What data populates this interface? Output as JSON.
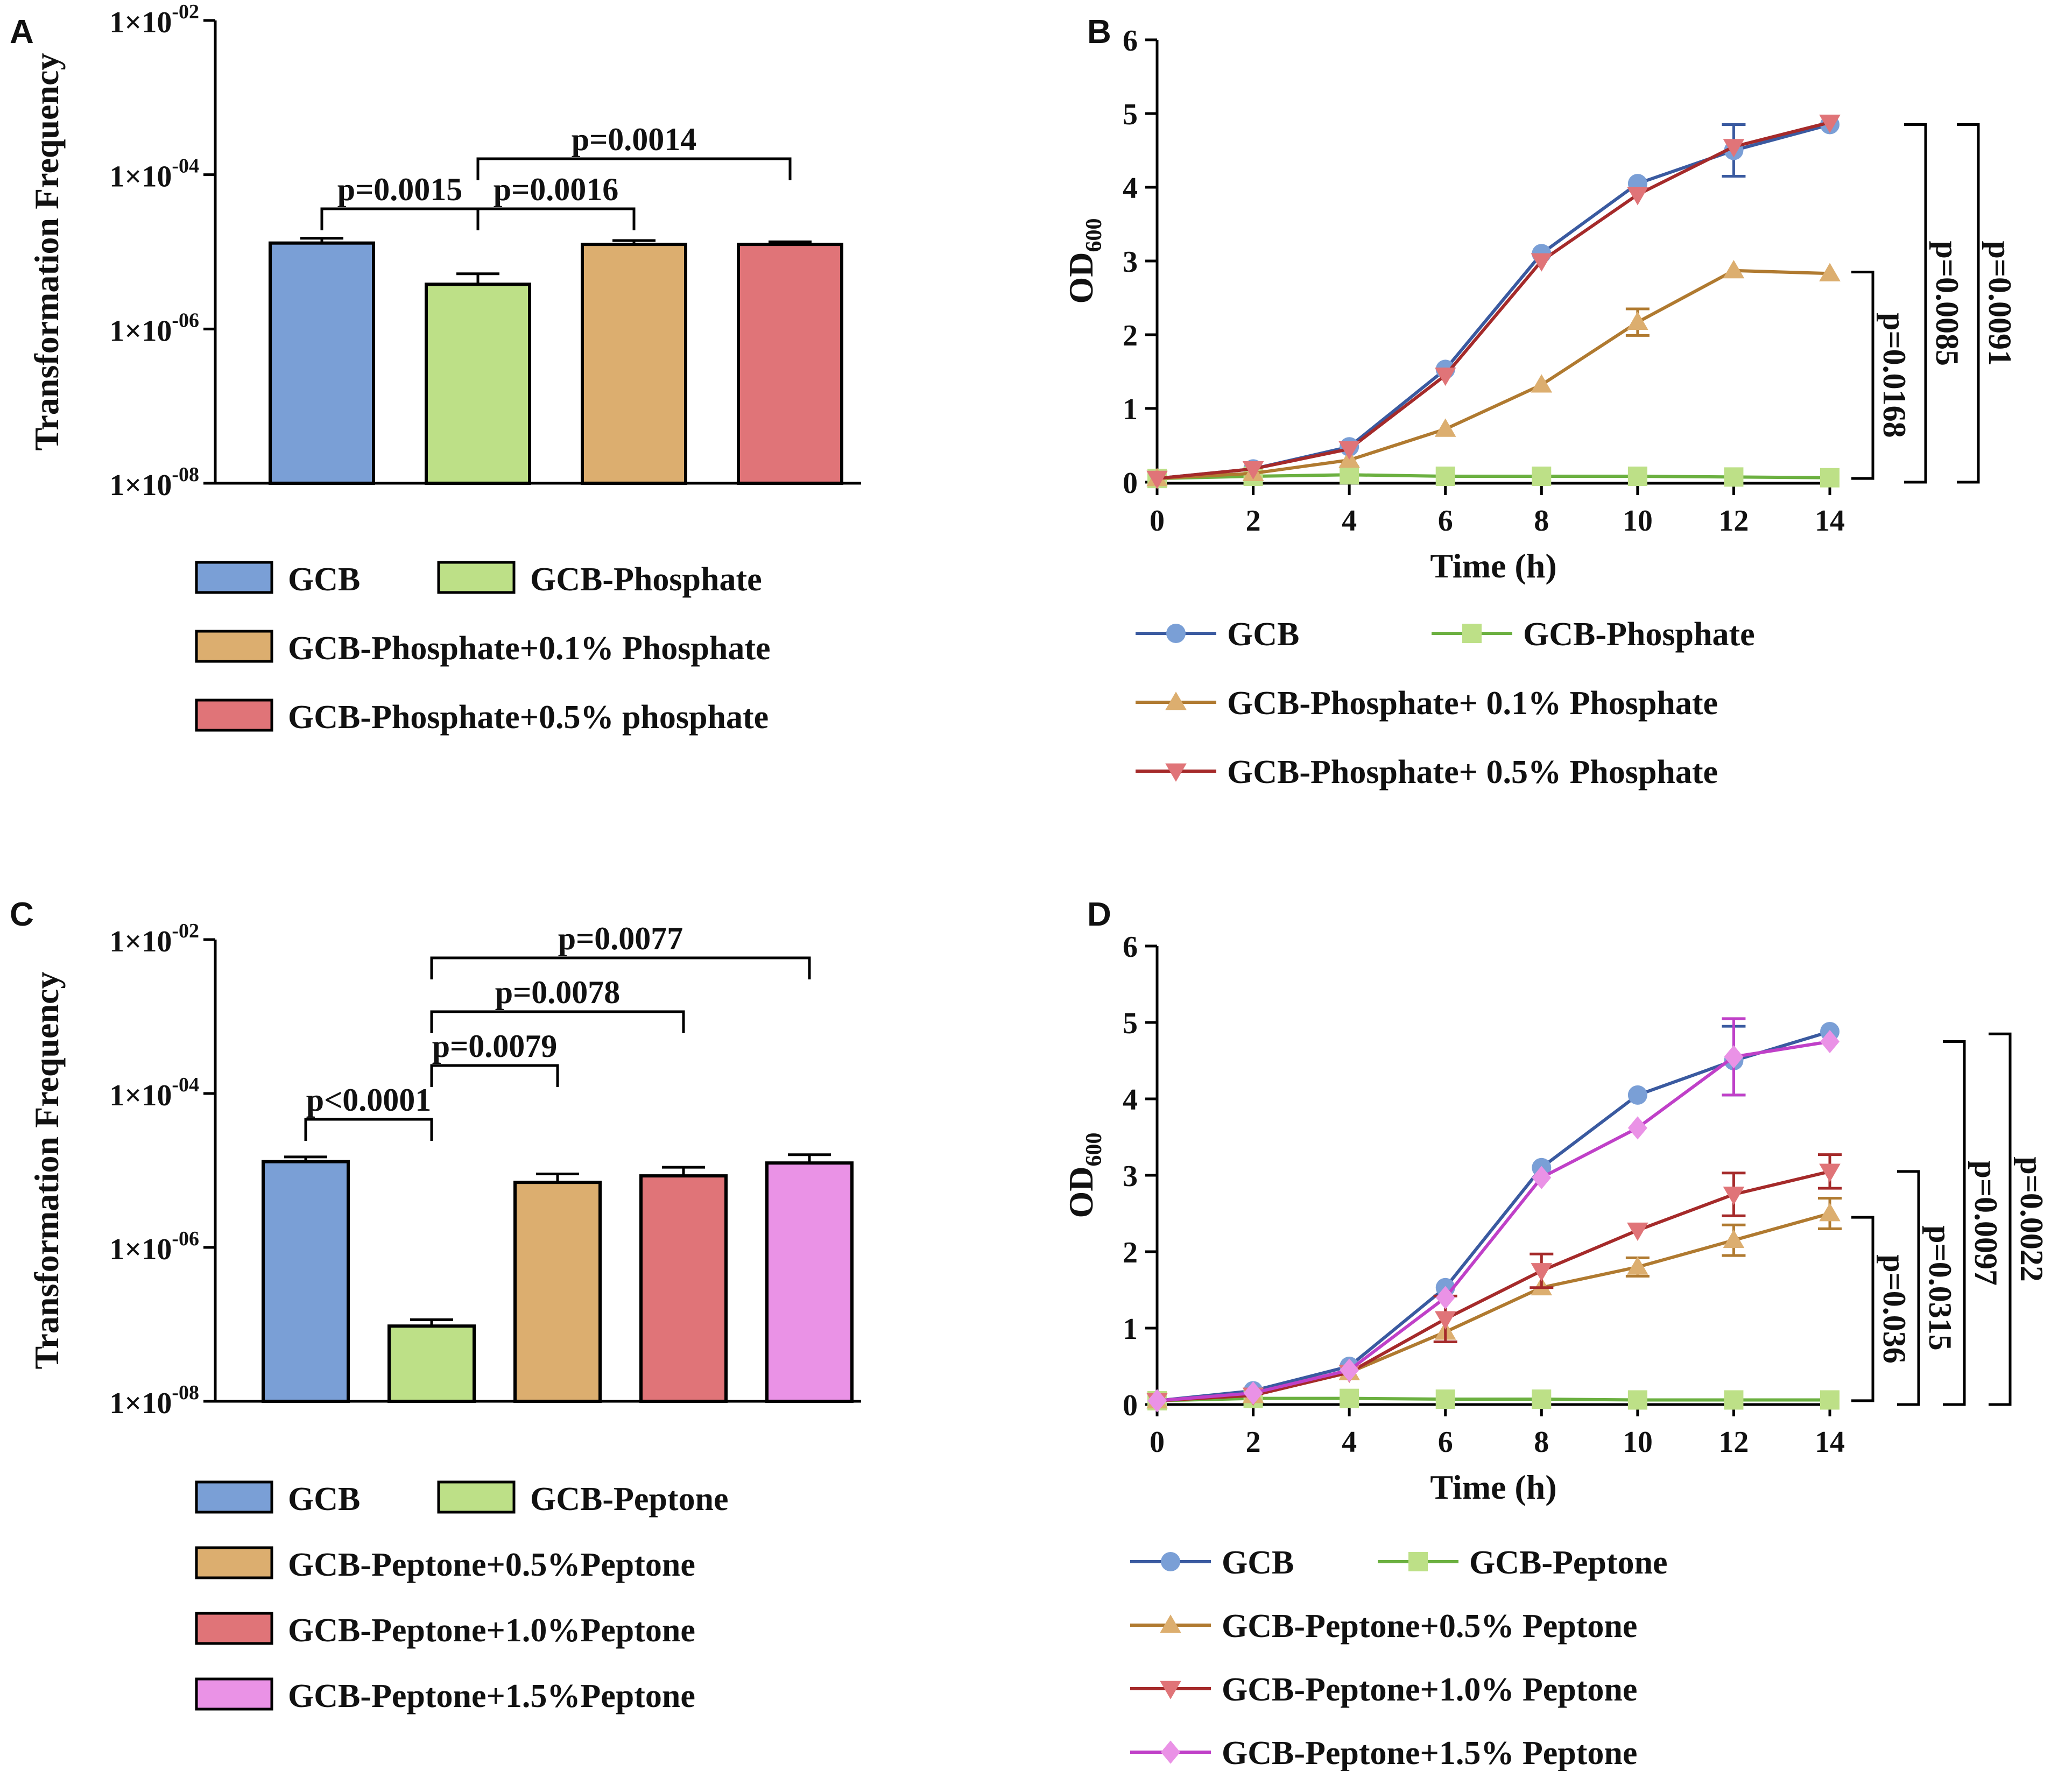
{
  "figure": {
    "panels": [
      "A",
      "B",
      "C",
      "D"
    ]
  },
  "colors": {
    "gcb_blue": "#7a9fd6",
    "gcb_line": "#3a5aa0",
    "phos_green": "#bde087",
    "phos_line": "#6bb040",
    "tan": "#dcae6f",
    "tan_line": "#b07a30",
    "red": "#e07478",
    "red_line": "#a52a2a",
    "pink": "#ea92e6",
    "pink_line": "#c040c8"
  },
  "chart_data": [
    {
      "panel": "A",
      "type": "bar",
      "ylabel": "Transformation Frequency",
      "yscale": "log",
      "ylim": [
        1e-08,
        0.01
      ],
      "ytick_labels": [
        {
          "base": "1×10",
          "exp": "-08"
        },
        {
          "base": "1×10",
          "exp": "-06"
        },
        {
          "base": "1×10",
          "exp": "-04"
        },
        {
          "base": "1×10",
          "exp": "-02"
        }
      ],
      "categories": [
        "GCB",
        "GCB-Phosphate",
        "GCB-Phosphate+0.1% Phosphate",
        "GCB-Phosphate+0.5% phosphate"
      ],
      "values": [
        1.3e-05,
        3.8e-06,
        1.25e-05,
        1.25e-05
      ],
      "errors": [
        2e-06,
        1.4e-06,
        1.5e-06,
        1e-06
      ],
      "colors": [
        "#7a9fd6",
        "#bde087",
        "#dcae6f",
        "#e07478"
      ],
      "comparisons": [
        {
          "from": 0,
          "to": 1,
          "label": "p=0.0015",
          "level": 0
        },
        {
          "from": 1,
          "to": 2,
          "label": "p=0.0016",
          "level": 0
        },
        {
          "from": 1,
          "to": 3,
          "label": "p=0.0014",
          "level": 1
        }
      ],
      "legend_rows": [
        [
          "GCB",
          "GCB-Phosphate"
        ],
        [
          "GCB-Phosphate+0.1% Phosphate"
        ],
        [
          "GCB-Phosphate+0.5% phosphate"
        ]
      ]
    },
    {
      "panel": "B",
      "type": "line",
      "xlabel": "Time (h)",
      "ylabel": "OD",
      "ylabel_sub": "600",
      "xlim": [
        0,
        14
      ],
      "ylim": [
        0,
        6
      ],
      "xticks": [
        0,
        2,
        4,
        6,
        8,
        10,
        12,
        14
      ],
      "yticks": [
        0,
        1,
        2,
        3,
        4,
        5,
        6
      ],
      "x": [
        0,
        2,
        4,
        6,
        8,
        10,
        12,
        14
      ],
      "series": [
        {
          "name": "GCB",
          "values": [
            0.05,
            0.18,
            0.48,
            1.53,
            3.1,
            4.05,
            4.5,
            4.85
          ],
          "errors": [
            0,
            0,
            0,
            0,
            0,
            0,
            0.35,
            0
          ],
          "marker": "circle",
          "color": "#3a5aa0",
          "marker_color": "#7a9fd6"
        },
        {
          "name": "GCB-Phosphate",
          "values": [
            0.05,
            0.08,
            0.1,
            0.08,
            0.08,
            0.08,
            0.07,
            0.06
          ],
          "errors": [
            0,
            0,
            0,
            0,
            0,
            0,
            0,
            0
          ],
          "marker": "square",
          "color": "#6bb040",
          "marker_color": "#bde087"
        },
        {
          "name": "GCB-Phosphate+ 0.1% Phosphate",
          "values": [
            0.05,
            0.12,
            0.3,
            0.72,
            1.32,
            2.17,
            2.87,
            2.83
          ],
          "errors": [
            0,
            0,
            0,
            0,
            0,
            0.18,
            0,
            0
          ],
          "marker": "triangle-up",
          "color": "#b07a30",
          "marker_color": "#dcae6f"
        },
        {
          "name": "GCB-Phosphate+ 0.5% Phosphate",
          "values": [
            0.05,
            0.18,
            0.45,
            1.45,
            3.0,
            3.9,
            4.55,
            4.88
          ],
          "errors": [
            0,
            0,
            0,
            0,
            0,
            0,
            0,
            0
          ],
          "marker": "triangle-down",
          "color": "#a52a2a",
          "marker_color": "#e07478"
        }
      ],
      "brackets": [
        {
          "label": "p=0.0168",
          "top": 2.85,
          "bottom": 0.05,
          "level": 0
        },
        {
          "label": "p=0.0085",
          "top": 4.85,
          "bottom": 0.0,
          "level": 1
        },
        {
          "label": "p=0.0091",
          "top": 4.85,
          "bottom": 0.0,
          "level": 2
        }
      ],
      "legend_rows": [
        [
          "GCB",
          "GCB-Phosphate"
        ],
        [
          "GCB-Phosphate+ 0.1% Phosphate"
        ],
        [
          "GCB-Phosphate+ 0.5% Phosphate"
        ]
      ]
    },
    {
      "panel": "C",
      "type": "bar",
      "ylabel": "Transformation Frequency",
      "yscale": "log",
      "ylim": [
        1e-08,
        0.01
      ],
      "ytick_labels": [
        {
          "base": "1×10",
          "exp": "-08"
        },
        {
          "base": "1×10",
          "exp": "-06"
        },
        {
          "base": "1×10",
          "exp": "-04"
        },
        {
          "base": "1×10",
          "exp": "-02"
        }
      ],
      "categories": [
        "GCB",
        "GCB-Peptone",
        "GCB-Peptone+0.5%Peptone",
        "GCB-Peptone+1.0%Peptone",
        "GCB-Peptone+1.5%Peptone"
      ],
      "values": [
        1.3e-05,
        9.5e-08,
        7e-06,
        8.5e-06,
        1.25e-05
      ],
      "errors": [
        2e-06,
        2e-08,
        2e-06,
        2.5e-06,
        3.5e-06
      ],
      "colors": [
        "#7a9fd6",
        "#bde087",
        "#dcae6f",
        "#e07478",
        "#ea92e6"
      ],
      "comparisons": [
        {
          "from": 0,
          "to": 1,
          "label": "p<0.0001",
          "level": 0
        },
        {
          "from": 1,
          "to": 2,
          "label": "p=0.0079",
          "level": 1
        },
        {
          "from": 1,
          "to": 3,
          "label": "p=0.0078",
          "level": 2
        },
        {
          "from": 1,
          "to": 4,
          "label": "p=0.0077",
          "level": 3
        }
      ],
      "legend_rows": [
        [
          "GCB",
          "GCB-Peptone"
        ],
        [
          "GCB-Peptone+0.5%Peptone"
        ],
        [
          "GCB-Peptone+1.0%Peptone"
        ],
        [
          "GCB-Peptone+1.5%Peptone"
        ]
      ]
    },
    {
      "panel": "D",
      "type": "line",
      "xlabel": "Time (h)",
      "ylabel": "OD",
      "ylabel_sub": "600",
      "xlim": [
        0,
        14
      ],
      "ylim": [
        0,
        6
      ],
      "xticks": [
        0,
        2,
        4,
        6,
        8,
        10,
        12,
        14
      ],
      "yticks": [
        0,
        1,
        2,
        3,
        4,
        5,
        6
      ],
      "x": [
        0,
        2,
        4,
        6,
        8,
        10,
        12,
        14
      ],
      "series": [
        {
          "name": "GCB",
          "values": [
            0.05,
            0.18,
            0.5,
            1.53,
            3.1,
            4.05,
            4.5,
            4.88
          ],
          "errors": [
            0,
            0,
            0,
            0,
            0,
            0,
            0.45,
            0
          ],
          "marker": "circle",
          "color": "#3a5aa0",
          "marker_color": "#7a9fd6"
        },
        {
          "name": "GCB-Peptone",
          "values": [
            0.05,
            0.08,
            0.08,
            0.07,
            0.07,
            0.06,
            0.06,
            0.06
          ],
          "errors": [
            0,
            0,
            0,
            0,
            0,
            0,
            0,
            0
          ],
          "marker": "square",
          "color": "#6bb040",
          "marker_color": "#bde087"
        },
        {
          "name": "GCB-Peptone+0.5% Peptone",
          "values": [
            0.05,
            0.12,
            0.42,
            0.95,
            1.53,
            1.8,
            2.15,
            2.5
          ],
          "errors": [
            0,
            0,
            0,
            0,
            0,
            0.12,
            0.2,
            0.2
          ],
          "marker": "triangle-up",
          "color": "#b07a30",
          "marker_color": "#dcae6f"
        },
        {
          "name": "GCB-Peptone+1.0% Peptone",
          "values": [
            0.05,
            0.12,
            0.42,
            1.12,
            1.75,
            2.28,
            2.75,
            3.05
          ],
          "errors": [
            0,
            0,
            0,
            0.3,
            0.22,
            0,
            0.28,
            0.22
          ],
          "marker": "triangle-down",
          "color": "#a52a2a",
          "marker_color": "#e07478"
        },
        {
          "name": "GCB-Peptone+1.5% Peptone",
          "values": [
            0.05,
            0.15,
            0.45,
            1.4,
            2.97,
            3.62,
            4.55,
            4.75
          ],
          "errors": [
            0,
            0,
            0,
            0,
            0,
            0,
            0.5,
            0
          ],
          "marker": "diamond",
          "color": "#c040c8",
          "marker_color": "#ea92e6"
        }
      ],
      "brackets": [
        {
          "label": "p=0.036",
          "top": 2.45,
          "bottom": 0.05,
          "level": 0
        },
        {
          "label": "p=0.0315",
          "top": 3.05,
          "bottom": 0.0,
          "level": 1
        },
        {
          "label": "p=0.0097",
          "top": 4.75,
          "bottom": 0.0,
          "level": 2
        },
        {
          "label": "p=0.0022",
          "top": 4.85,
          "bottom": 0.0,
          "level": 3
        }
      ],
      "legend_rows": [
        [
          "GCB",
          "GCB-Peptone"
        ],
        [
          "GCB-Peptone+0.5% Peptone"
        ],
        [
          "GCB-Peptone+1.0% Peptone"
        ],
        [
          "GCB-Peptone+1.5% Peptone"
        ]
      ]
    }
  ]
}
